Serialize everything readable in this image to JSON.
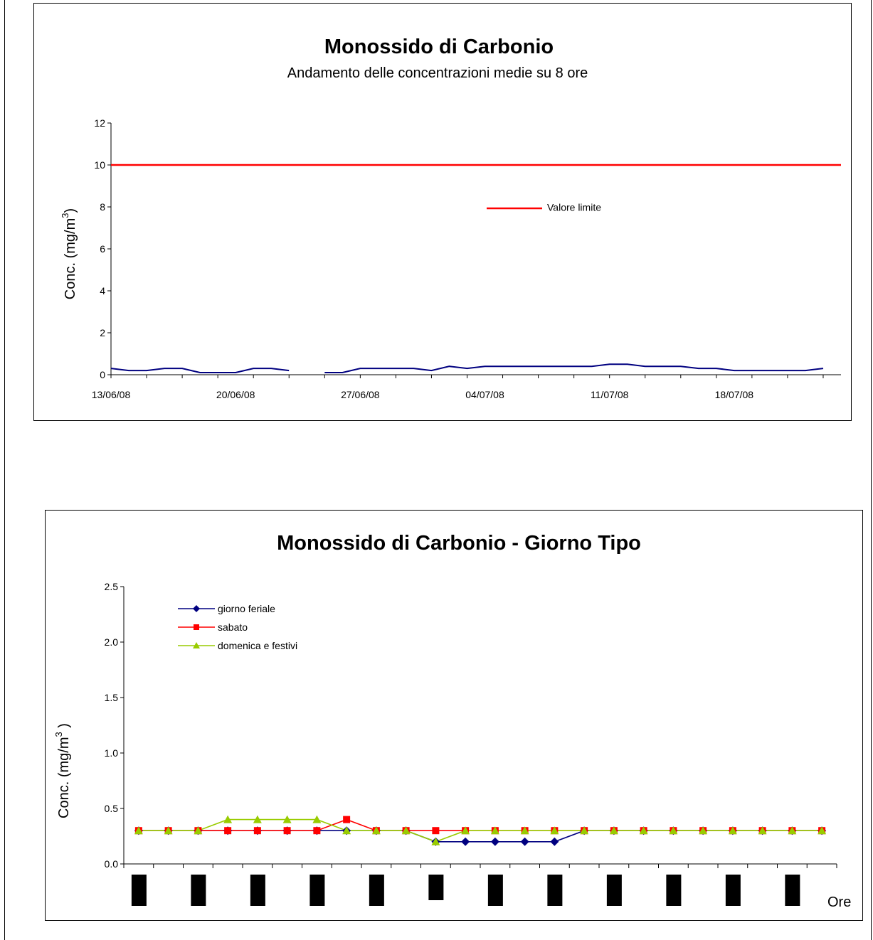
{
  "chart_data": [
    {
      "type": "line",
      "title": "Monossido di  Carbonio",
      "subtitle": "Andamento delle concentrazioni medie su 8 ore",
      "xlabel": "",
      "ylabel": "Conc. (mg/m",
      "ylabel_sup": "3",
      "ylabel_end": ")",
      "ylim": [
        0,
        12
      ],
      "yticks": [
        "0",
        "2",
        "4",
        "6",
        "8",
        "10",
        "12"
      ],
      "xlim": [
        "2008-06-13",
        "2008-07-24"
      ],
      "xtick_labels": [
        "13/06/08",
        "20/06/08",
        "27/06/08",
        "04/07/08",
        "11/07/08",
        "18/07/08"
      ],
      "grid": false,
      "legend_position": "center-right",
      "series": [
        {
          "name": "Valore limite",
          "color": "#ff0000",
          "x": [
            "2008-06-13",
            "2008-07-24"
          ],
          "values": [
            10,
            10
          ]
        },
        {
          "color": "#000080",
          "x": [
            "2008-06-13",
            "2008-06-14",
            "2008-06-15",
            "2008-06-16",
            "2008-06-17",
            "2008-06-18",
            "2008-06-19",
            "2008-06-20",
            "2008-06-21",
            "2008-06-22",
            "2008-06-23",
            "2008-06-24",
            "2008-06-25",
            "2008-06-26",
            "2008-06-27",
            "2008-06-28",
            "2008-06-29",
            "2008-06-30",
            "2008-07-01",
            "2008-07-02",
            "2008-07-03",
            "2008-07-04",
            "2008-07-05",
            "2008-07-06",
            "2008-07-07",
            "2008-07-08",
            "2008-07-09",
            "2008-07-10",
            "2008-07-11",
            "2008-07-12",
            "2008-07-13",
            "2008-07-14",
            "2008-07-15",
            "2008-07-16",
            "2008-07-17",
            "2008-07-18",
            "2008-07-19",
            "2008-07-20",
            "2008-07-21",
            "2008-07-22",
            "2008-07-23"
          ],
          "values": [
            0.3,
            0.2,
            0.2,
            0.3,
            0.3,
            0.1,
            0.1,
            0.1,
            0.3,
            0.3,
            0.2,
            null,
            0.1,
            0.1,
            0.3,
            0.3,
            0.3,
            0.3,
            0.2,
            0.4,
            0.3,
            0.4,
            0.4,
            0.4,
            0.4,
            0.4,
            0.4,
            0.4,
            0.5,
            0.5,
            0.4,
            0.4,
            0.4,
            0.3,
            0.3,
            0.2,
            0.2,
            0.2,
            0.2,
            0.2,
            0.3
          ]
        }
      ]
    },
    {
      "type": "line",
      "title": "Monossido di Carbonio -  Giorno Tipo",
      "xlabel": "Ore",
      "ylabel": "Conc. (mg/m",
      "ylabel_sup": "3",
      "ylabel_end": " )",
      "ylim": [
        0,
        2.5
      ],
      "yticks": [
        "0.0",
        "0.5",
        "1.0",
        "1.5",
        "2.0",
        "2.5"
      ],
      "x": [
        1,
        2,
        3,
        4,
        5,
        6,
        7,
        8,
        9,
        10,
        11,
        12,
        13,
        14,
        15,
        16,
        17,
        18,
        19,
        20,
        21,
        22,
        23,
        24
      ],
      "grid": false,
      "legend_position": "top-left",
      "series": [
        {
          "name": "giorno feriale",
          "color": "#000080",
          "marker": "diamond",
          "values": [
            0.3,
            0.3,
            0.3,
            0.3,
            0.3,
            0.3,
            0.3,
            0.3,
            0.3,
            0.3,
            0.2,
            0.2,
            0.2,
            0.2,
            0.2,
            0.3,
            0.3,
            0.3,
            0.3,
            0.3,
            0.3,
            0.3,
            0.3,
            0.3
          ]
        },
        {
          "name": "sabato",
          "color": "#ff0000",
          "marker": "square",
          "values": [
            0.3,
            0.3,
            0.3,
            0.3,
            0.3,
            0.3,
            0.3,
            0.4,
            0.3,
            0.3,
            0.3,
            0.3,
            0.3,
            0.3,
            0.3,
            0.3,
            0.3,
            0.3,
            0.3,
            0.3,
            0.3,
            0.3,
            0.3,
            0.3
          ]
        },
        {
          "name": "domenica e festivi",
          "color": "#99cc00",
          "marker": "triangle",
          "values": [
            0.3,
            0.3,
            0.3,
            0.4,
            0.4,
            0.4,
            0.4,
            0.3,
            0.3,
            0.3,
            0.2,
            0.3,
            0.3,
            0.3,
            0.3,
            0.3,
            0.3,
            0.3,
            0.3,
            0.3,
            0.3,
            0.3,
            0.3,
            0.3
          ]
        }
      ],
      "redacted_tick_blocks": 12
    }
  ]
}
